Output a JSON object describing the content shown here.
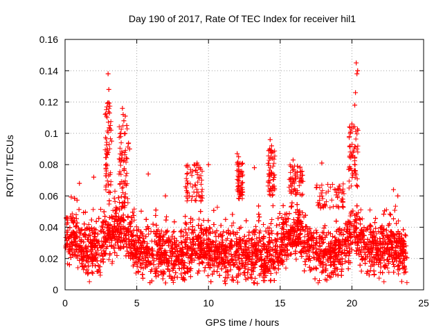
{
  "chart_data": {
    "type": "scatter",
    "title": "Day 190 of 2017, Rate Of TEC Index for receiver hil1",
    "xlabel": "GPS time / hours",
    "ylabel": "ROTI / TECUs",
    "xlim": [
      0,
      25
    ],
    "ylim": [
      0,
      0.16
    ],
    "xticks": [
      0,
      5,
      10,
      15,
      20,
      25
    ],
    "xtick_labels": [
      "0",
      "5",
      "10",
      "15",
      "20",
      "25"
    ],
    "yticks": [
      0,
      0.02,
      0.04,
      0.06,
      0.08,
      0.1,
      0.12,
      0.14,
      0.16
    ],
    "ytick_labels": [
      "0",
      "0.02",
      "0.04",
      "0.06",
      "0.08",
      "0.1",
      "0.12",
      "0.14",
      "0.16"
    ],
    "grid": true,
    "marker": "+",
    "color": "#ff0000",
    "series": [
      {
        "name": "ROTI",
        "description": "dense scatter, bulk 0.01-0.05 TECU across 0-23.8 h",
        "x": [
          3.0,
          3.05,
          3.1,
          3.15,
          3.2,
          3.25,
          4.0,
          4.05,
          4.1,
          4.2,
          4.3,
          4.5,
          9.0,
          9.2,
          9.4,
          10.0,
          12.0,
          12.1,
          14.3,
          14.4,
          14.5,
          15.9,
          16.2,
          17.9,
          19.9,
          20.0,
          20.1,
          20.2,
          20.3,
          20.4,
          20.35,
          20.25,
          22.9,
          23.2,
          1.0,
          2.0,
          5.8,
          7.0,
          8.5,
          13.2
        ],
        "y": [
          0.138,
          0.128,
          0.113,
          0.105,
          0.102,
          0.095,
          0.116,
          0.112,
          0.108,
          0.111,
          0.105,
          0.09,
          0.08,
          0.081,
          0.078,
          0.08,
          0.087,
          0.085,
          0.096,
          0.092,
          0.088,
          0.083,
          0.079,
          0.081,
          0.1,
          0.106,
          0.104,
          0.118,
          0.145,
          0.14,
          0.138,
          0.126,
          0.064,
          0.06,
          0.068,
          0.072,
          0.074,
          0.06,
          0.074,
          0.078
        ]
      }
    ]
  }
}
